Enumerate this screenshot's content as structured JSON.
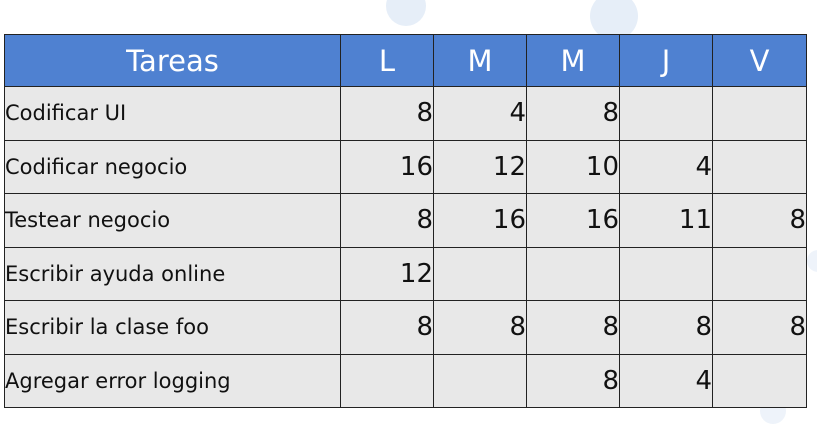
{
  "table": {
    "headers": [
      "Tareas",
      "L",
      "M",
      "M",
      "J",
      "V"
    ],
    "rows": [
      {
        "task": "Codificar UI",
        "hours": [
          "8",
          "4",
          "8",
          "",
          ""
        ]
      },
      {
        "task": "Codificar negocio",
        "hours": [
          "16",
          "12",
          "10",
          "4",
          ""
        ]
      },
      {
        "task": "Testear negocio",
        "hours": [
          "8",
          "16",
          "16",
          "11",
          "8"
        ]
      },
      {
        "task": "Escribir ayuda online",
        "hours": [
          "12",
          "",
          "",
          "",
          ""
        ]
      },
      {
        "task": "Escribir la clase foo",
        "hours": [
          "8",
          "8",
          "8",
          "8",
          "8"
        ]
      },
      {
        "task": "Agregar error logging",
        "hours": [
          "",
          "",
          "8",
          "4",
          ""
        ]
      }
    ]
  },
  "colors": {
    "header_bg": "#4f81d1",
    "header_text": "#ffffff",
    "cell_bg": "#e8e8e8",
    "border": "#222222"
  }
}
